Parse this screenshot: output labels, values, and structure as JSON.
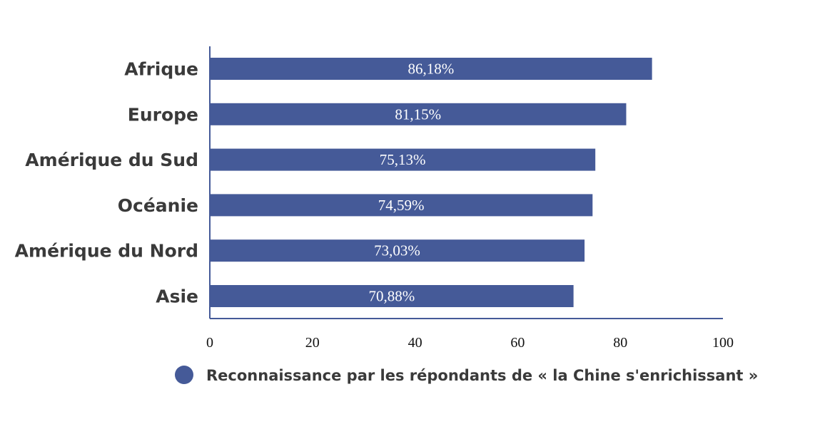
{
  "colors": {
    "bar": "#455a98",
    "axis": "#455a98"
  },
  "chart_data": {
    "type": "bar",
    "orientation": "horizontal",
    "categories": [
      "Afrique",
      "Europe",
      "Amérique du Sud",
      "Océanie",
      "Amérique du Nord",
      "Asie"
    ],
    "series": [
      {
        "name": "Reconnaissance par les répondants de « la Chine s'enrichissant »",
        "values": [
          86.18,
          81.15,
          75.13,
          74.59,
          73.03,
          70.88
        ],
        "value_labels": [
          "86,18%",
          "81,15%",
          "75,13%",
          "74,59%",
          "73,03%",
          "70,88%"
        ]
      }
    ],
    "xlim": [
      0,
      100
    ],
    "x_ticks": [
      "0",
      "20",
      "40",
      "60",
      "80",
      "100"
    ],
    "grid": false,
    "legend_position": "bottom"
  }
}
